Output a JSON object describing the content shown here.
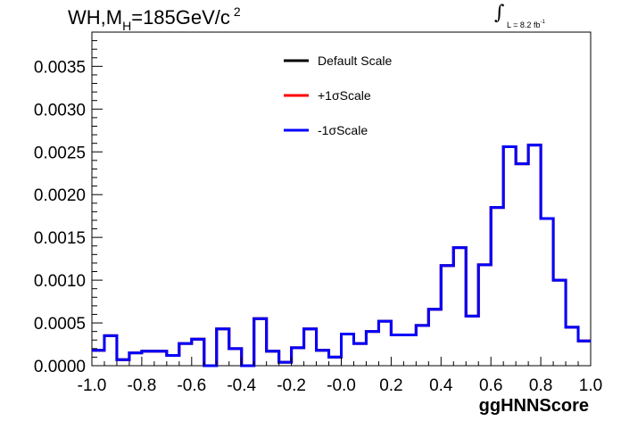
{
  "title": {
    "prefix": "WH,M",
    "subscript": "H",
    "value": "=185GeV/c",
    "superscript": "2"
  },
  "luminosity": {
    "text": "L = 8.2 fb",
    "exponent": "-1"
  },
  "chart_data": {
    "type": "line",
    "subtype": "step-histogram",
    "xlabel": "ggHNNScore",
    "ylabel": "",
    "xlim": [
      -1.0,
      1.0
    ],
    "ylim": [
      0.0,
      0.0039
    ],
    "xticks": [
      "-1.0",
      "-0.8",
      "-0.6",
      "-0.4",
      "-0.2",
      "-0.0",
      "0.2",
      "0.4",
      "0.6",
      "0.8",
      "1.0"
    ],
    "yticks": [
      "0.0000",
      "0.0005",
      "0.0010",
      "0.0015",
      "0.0020",
      "0.0025",
      "0.0030",
      "0.0035"
    ],
    "legend_position": "top-center",
    "bin_edges": [
      -1.0,
      -0.95,
      -0.9,
      -0.85,
      -0.8,
      -0.75,
      -0.7,
      -0.65,
      -0.6,
      -0.55,
      -0.5,
      -0.45,
      -0.4,
      -0.35,
      -0.3,
      -0.25,
      -0.2,
      -0.15,
      -0.1,
      -0.05,
      0.0,
      0.05,
      0.1,
      0.15,
      0.2,
      0.25,
      0.3,
      0.35,
      0.4,
      0.45,
      0.5,
      0.55,
      0.6,
      0.65,
      0.7,
      0.75,
      0.8,
      0.85,
      0.9,
      0.95,
      1.0
    ],
    "series": [
      {
        "name": "Default Scale",
        "color": "#000000",
        "values": [
          0.00018,
          0.00035,
          7e-05,
          0.00015,
          0.00017,
          0.00017,
          0.00012,
          0.00026,
          0.00031,
          0.0,
          0.00043,
          0.0002,
          0.0,
          0.00055,
          0.00017,
          4e-05,
          0.00021,
          0.00043,
          0.00018,
          0.0001,
          0.00037,
          0.00026,
          0.0004,
          0.00052,
          0.00036,
          0.00036,
          0.00047,
          0.00066,
          0.00117,
          0.00138,
          0.00058,
          0.00118,
          0.00185,
          0.00256,
          0.00236,
          0.00258,
          0.00172,
          0.001,
          0.00045,
          0.00029
        ]
      },
      {
        "name": "+1σScale",
        "color": "#ff0000",
        "values": [
          0.00018,
          0.00035,
          7e-05,
          0.00015,
          0.00017,
          0.00017,
          0.00012,
          0.00026,
          0.00031,
          0.0,
          0.00043,
          0.0002,
          0.0,
          0.00055,
          0.00017,
          4e-05,
          0.00021,
          0.00043,
          0.00018,
          0.0001,
          0.00037,
          0.00026,
          0.0004,
          0.00052,
          0.00036,
          0.00036,
          0.00047,
          0.00066,
          0.00117,
          0.00138,
          0.00058,
          0.00118,
          0.00185,
          0.00256,
          0.00236,
          0.00258,
          0.00172,
          0.001,
          0.00045,
          0.00029
        ]
      },
      {
        "name": "-1σScale",
        "color": "#0000ff",
        "values": [
          0.00018,
          0.00035,
          7e-05,
          0.00015,
          0.00017,
          0.00017,
          0.00012,
          0.00026,
          0.00031,
          0.0,
          0.00043,
          0.0002,
          0.0,
          0.00055,
          0.00017,
          4e-05,
          0.00021,
          0.00043,
          0.00018,
          0.0001,
          0.00037,
          0.00026,
          0.0004,
          0.00052,
          0.00036,
          0.00036,
          0.00047,
          0.00066,
          0.00117,
          0.00138,
          0.00058,
          0.00118,
          0.00185,
          0.00256,
          0.00236,
          0.00258,
          0.00172,
          0.001,
          0.00045,
          0.00029
        ]
      }
    ]
  }
}
